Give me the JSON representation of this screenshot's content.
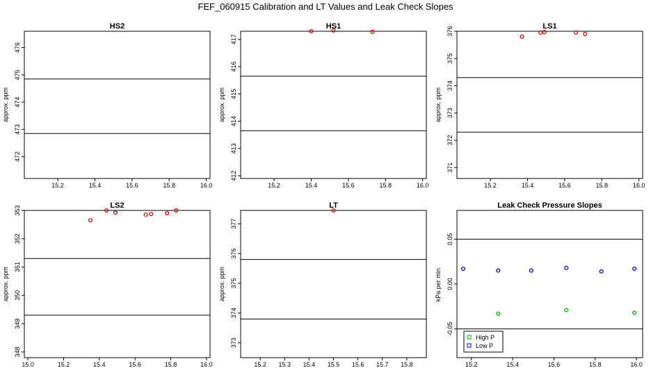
{
  "title": "FEF_060915  Calibration and LT Values and Leak Check Slopes",
  "chart_data": [
    {
      "type": "scatter",
      "title": "HS2",
      "ylabel": "approx. ppm",
      "xlim": [
        15.02,
        16.02
      ],
      "ylim": [
        471.2,
        476.6
      ],
      "xticks": [
        15.2,
        15.4,
        15.6,
        15.8,
        16.0
      ],
      "xtick_labels": [
        "15.2",
        "15.4",
        "15.6",
        "15.8",
        "16.0"
      ],
      "yticks": [
        472,
        473,
        474,
        475,
        476
      ],
      "ytick_labels": [
        "472",
        "473",
        "474",
        "475",
        "476"
      ],
      "hlines": [
        474.85,
        472.85
      ],
      "series": [
        {
          "color": "#dd0000",
          "points": []
        }
      ]
    },
    {
      "type": "scatter",
      "title": "HS1",
      "ylabel": "approx. ppm",
      "xlim": [
        15.02,
        16.02
      ],
      "ylim": [
        411.9,
        417.3
      ],
      "xticks": [
        15.2,
        15.4,
        15.6,
        15.8,
        16.0
      ],
      "xtick_labels": [
        "15.2",
        "15.4",
        "15.6",
        "15.8",
        "16.0"
      ],
      "yticks": [
        412,
        413,
        414,
        415,
        416,
        417
      ],
      "ytick_labels": [
        "412",
        "413",
        "414",
        "415",
        "416",
        "417"
      ],
      "hlines": [
        415.65,
        413.65
      ],
      "series": [
        {
          "color": "#dd0000",
          "points": [
            [
              15.4,
              417.3
            ],
            [
              15.52,
              417.33
            ],
            [
              15.73,
              417.28
            ]
          ]
        }
      ]
    },
    {
      "type": "scatter",
      "title": "LS1",
      "ylabel": "approx. ppm",
      "xlim": [
        15.02,
        16.02
      ],
      "ylim": [
        370.6,
        376.0
      ],
      "xticks": [
        15.2,
        15.4,
        15.6,
        15.8,
        16.0
      ],
      "xtick_labels": [
        "15.2",
        "15.4",
        "15.6",
        "15.8",
        "16.0"
      ],
      "yticks": [
        371,
        372,
        373,
        374,
        375,
        376
      ],
      "ytick_labels": [
        "371",
        "372",
        "373",
        "374",
        "375",
        "376"
      ],
      "hlines": [
        374.3,
        372.3
      ],
      "series": [
        {
          "color": "#dd0000",
          "points": [
            [
              15.37,
              375.8
            ],
            [
              15.47,
              375.95
            ],
            [
              15.49,
              375.97
            ],
            [
              15.66,
              375.95
            ],
            [
              15.71,
              375.9
            ]
          ]
        }
      ]
    },
    {
      "type": "scatter",
      "title": "LS2",
      "ylabel": "approx. ppm",
      "xlim": [
        14.98,
        16.02
      ],
      "ylim": [
        347.8,
        353.0
      ],
      "xticks": [
        15.0,
        15.2,
        15.4,
        15.6,
        15.8,
        16.0
      ],
      "xtick_labels": [
        "15.0",
        "15.2",
        "15.4",
        "15.6",
        "15.8",
        "16.0"
      ],
      "yticks": [
        348,
        349,
        350,
        351,
        352,
        353
      ],
      "ytick_labels": [
        "348",
        "349",
        "350",
        "351",
        "352",
        "353"
      ],
      "hlines": [
        351.3,
        349.3
      ],
      "series": [
        {
          "color": "#dd0000",
          "points": [
            [
              15.35,
              352.65
            ],
            [
              15.44,
              353.0
            ],
            [
              15.49,
              352.92
            ],
            [
              15.66,
              352.85
            ],
            [
              15.69,
              352.87
            ],
            [
              15.78,
              352.9
            ],
            [
              15.83,
              353.0
            ]
          ]
        }
      ]
    },
    {
      "type": "scatter",
      "title": "LT",
      "ylabel": "approx. ppm",
      "xlim": [
        15.12,
        15.88
      ],
      "ylim": [
        372.5,
        377.45
      ],
      "xticks": [
        15.2,
        15.3,
        15.4,
        15.5,
        15.6,
        15.7,
        15.8
      ],
      "xtick_labels": [
        "15.2",
        "15.3",
        "15.4",
        "15.5",
        "15.6",
        "15.7",
        "15.8"
      ],
      "yticks": [
        373,
        374,
        375,
        376,
        377
      ],
      "ytick_labels": [
        "373",
        "374",
        "375",
        "376",
        "377"
      ],
      "hlines": [
        375.8,
        373.8
      ],
      "series": [
        {
          "color": "#dd0000",
          "points": [
            [
              15.5,
              377.45
            ]
          ]
        }
      ]
    },
    {
      "type": "scatter",
      "title": "Leak Check Pressure Slopes",
      "ylabel": "kPa per min.",
      "xlim": [
        15.13,
        16.03
      ],
      "ylim": [
        -0.082,
        0.082
      ],
      "xticks": [
        15.2,
        15.4,
        15.6,
        15.8,
        16.0
      ],
      "xtick_labels": [
        "15.2",
        "15.4",
        "15.6",
        "15.8",
        "16.0"
      ],
      "yticks": [
        -0.05,
        0.0,
        0.05
      ],
      "ytick_labels": [
        "-0.05",
        "0.00",
        "0.05"
      ],
      "hlines": [
        0.05,
        -0.05
      ],
      "series": [
        {
          "name": "High P",
          "color": "#00aa00",
          "points": [
            [
              15.33,
              -0.033
            ],
            [
              15.66,
              -0.029
            ],
            [
              15.99,
              -0.032
            ]
          ]
        },
        {
          "name": "Low P",
          "color": "#0000cc",
          "points": [
            [
              15.16,
              0.017
            ],
            [
              15.33,
              0.015
            ],
            [
              15.49,
              0.015
            ],
            [
              15.66,
              0.018
            ],
            [
              15.83,
              0.014
            ],
            [
              15.99,
              0.017
            ]
          ]
        }
      ],
      "legend_position": "bottom-left"
    }
  ]
}
